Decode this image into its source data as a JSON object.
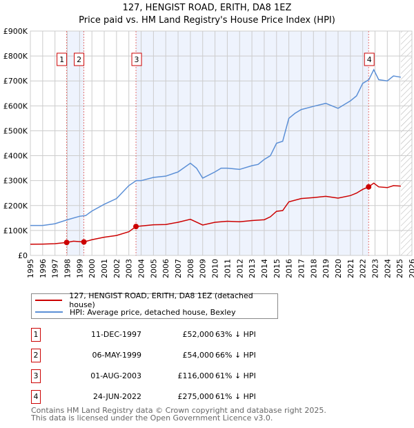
{
  "title": "127, HENGIST ROAD, ERITH, DA8 1EZ",
  "subtitle": "Price paid vs. HM Land Registry's House Price Index (HPI)",
  "colors": {
    "price": "#cc0000",
    "hpi": "#5b8fd6",
    "shade": "#eef3fd"
  },
  "chart_data": {
    "type": "line",
    "title": "127, HENGIST ROAD, ERITH, DA8 1EZ",
    "xlim": [
      1995,
      2026
    ],
    "ylim": [
      0,
      900000
    ],
    "y_ticks": [
      {
        "v": 0,
        "label": "£0"
      },
      {
        "v": 100000,
        "label": "£100K"
      },
      {
        "v": 200000,
        "label": "£200K"
      },
      {
        "v": 300000,
        "label": "£300K"
      },
      {
        "v": 400000,
        "label": "£400K"
      },
      {
        "v": 500000,
        "label": "£500K"
      },
      {
        "v": 600000,
        "label": "£600K"
      },
      {
        "v": 700000,
        "label": "£700K"
      },
      {
        "v": 800000,
        "label": "£800K"
      },
      {
        "v": 900000,
        "label": "£900K"
      }
    ],
    "x_ticks": [
      "1995",
      "1996",
      "1997",
      "1998",
      "1999",
      "2000",
      "2001",
      "2002",
      "2003",
      "2004",
      "2005",
      "2006",
      "2007",
      "2008",
      "2009",
      "2010",
      "2011",
      "2012",
      "2013",
      "2014",
      "2015",
      "2016",
      "2017",
      "2018",
      "2019",
      "2020",
      "2021",
      "2022",
      "2023",
      "2024",
      "2025",
      "2026"
    ],
    "series": [
      {
        "name": "127, HENGIST ROAD, ERITH, DA8 1EZ (detached house)",
        "color": "#cc0000",
        "x": [
          1995,
          1996,
          1997,
          1997.95,
          1998.5,
          1999.35,
          2000,
          2001,
          2002,
          2003,
          2003.58,
          2004,
          2005,
          2006,
          2007,
          2008,
          2009,
          2010,
          2011,
          2012,
          2013,
          2014,
          2014.5,
          2015,
          2015.5,
          2016,
          2017,
          2018,
          2019,
          2020,
          2021,
          2021.5,
          2022,
          2022.48,
          2022.9,
          2023.3,
          2024,
          2024.5,
          2025.1
        ],
        "y": [
          45000,
          45500,
          47000,
          52000,
          57000,
          54000,
          63000,
          73000,
          80000,
          95000,
          116000,
          118000,
          123000,
          124000,
          133000,
          145000,
          122000,
          133000,
          137000,
          135000,
          140000,
          143000,
          155000,
          177000,
          180000,
          215000,
          228000,
          232000,
          237000,
          230000,
          240000,
          250000,
          265000,
          275000,
          290000,
          275000,
          272000,
          280000,
          278000
        ]
      },
      {
        "name": "HPI: Average price, detached house, Bexley",
        "color": "#5b8fd6",
        "x": [
          1995,
          1996,
          1997,
          1998,
          1999,
          1999.5,
          2000,
          2001,
          2002,
          2003,
          2003.6,
          2004,
          2005,
          2006,
          2007,
          2008,
          2008.5,
          2009,
          2010,
          2010.5,
          2011,
          2012,
          2013,
          2013.5,
          2014,
          2014.5,
          2015,
          2015.5,
          2016,
          2016.5,
          2017,
          2018,
          2019,
          2019.5,
          2020,
          2020.5,
          2021,
          2021.5,
          2022,
          2022.5,
          2022.9,
          2023.3,
          2024,
          2024.5,
          2025.1
        ],
        "y": [
          120000,
          120000,
          127000,
          143000,
          157000,
          160000,
          178000,
          205000,
          228000,
          280000,
          300000,
          300000,
          313000,
          318000,
          335000,
          370000,
          350000,
          310000,
          335000,
          350000,
          350000,
          345000,
          360000,
          365000,
          385000,
          400000,
          450000,
          458000,
          550000,
          570000,
          585000,
          598000,
          610000,
          600000,
          590000,
          605000,
          620000,
          640000,
          690000,
          705000,
          745000,
          705000,
          700000,
          720000,
          715000
        ]
      }
    ],
    "sales": [
      {
        "n": "1",
        "x": 1997.95,
        "y": 52000
      },
      {
        "n": "2",
        "x": 1999.35,
        "y": 54000
      },
      {
        "n": "3",
        "x": 2003.58,
        "y": 116000
      },
      {
        "n": "4",
        "x": 2022.48,
        "y": 275000
      }
    ],
    "shaded": [
      [
        1997.95,
        1999.35
      ],
      [
        2003.58,
        2022.48
      ]
    ],
    "forecast_from": 2025.1,
    "legend_position": "below"
  },
  "legend": [
    "127, HENGIST ROAD, ERITH, DA8 1EZ (detached house)",
    "HPI: Average price, detached house, Bexley"
  ],
  "table": [
    {
      "n": "1",
      "date": "11-DEC-1997",
      "price": "£52,000",
      "hpi": "63% ↓ HPI"
    },
    {
      "n": "2",
      "date": "06-MAY-1999",
      "price": "£54,000",
      "hpi": "66% ↓ HPI"
    },
    {
      "n": "3",
      "date": "01-AUG-2003",
      "price": "£116,000",
      "hpi": "61% ↓ HPI"
    },
    {
      "n": "4",
      "date": "24-JUN-2022",
      "price": "£275,000",
      "hpi": "61% ↓ HPI"
    }
  ],
  "footer": [
    "Contains HM Land Registry data © Crown copyright and database right 2025.",
    "This data is licensed under the Open Government Licence v3.0."
  ]
}
